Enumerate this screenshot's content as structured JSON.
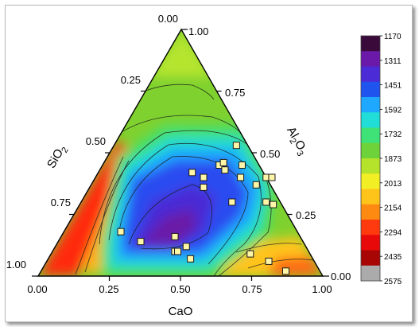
{
  "chart_data": {
    "type": "ternary-contour",
    "axes": {
      "bottom": {
        "label": "CaO",
        "ticks": [
          "0.00",
          "0.25",
          "0.50",
          "0.75",
          "1.00"
        ]
      },
      "left": {
        "label": "SiO",
        "label_sub": "2",
        "ticks": [
          "1.00",
          "0.75",
          "0.50",
          "0.25",
          "0.00"
        ]
      },
      "right": {
        "label_parts": [
          "Al",
          "2",
          "O",
          "3"
        ],
        "ticks": [
          "0.00",
          "0.25",
          "0.50",
          "0.75",
          "1.00"
        ]
      }
    },
    "colorbar": {
      "ticks": [
        "1170",
        "1311",
        "1451",
        "1592",
        "1732",
        "1873",
        "2013",
        "2154",
        "2294",
        "2435",
        "2575"
      ],
      "colors": [
        "#3a0a3a",
        "#6a19a8",
        "#4b2bd6",
        "#1f55ee",
        "#1fa8ff",
        "#21ddd7",
        "#3fe277",
        "#6ed23b",
        "#b5e22b",
        "#f3ef25",
        "#ffc41a",
        "#ff8a12",
        "#ff3a0f",
        "#e80a0a",
        "#a80505",
        "#ababab"
      ]
    },
    "points": [
      {
        "CaO": 0.2,
        "Al2O3": 0.18
      },
      {
        "CaO": 0.29,
        "Al2O3": 0.14
      },
      {
        "CaO": 0.33,
        "Al2O3": 0.42
      },
      {
        "CaO": 0.38,
        "Al2O3": 0.4
      },
      {
        "CaO": 0.4,
        "Al2O3": 0.36
      },
      {
        "CaO": 0.41,
        "Al2O3": 0.45
      },
      {
        "CaO": 0.42,
        "Al2O3": 0.46
      },
      {
        "CaO": 0.43,
        "Al2O3": 0.53
      },
      {
        "CaO": 0.4,
        "Al2O3": 0.16
      },
      {
        "CaO": 0.43,
        "Al2O3": 0.1
      },
      {
        "CaO": 0.44,
        "Al2O3": 0.1
      },
      {
        "CaO": 0.46,
        "Al2O3": 0.12
      },
      {
        "CaO": 0.5,
        "Al2O3": 0.07
      },
      {
        "CaO": 0.51,
        "Al2O3": 0.4
      },
      {
        "CaO": 0.53,
        "Al2O3": 0.3
      },
      {
        "CaO": 0.44,
        "Al2O3": 0.43
      },
      {
        "CaO": 0.49,
        "Al2O3": 0.45
      },
      {
        "CaO": 0.58,
        "Al2O3": 0.37
      },
      {
        "CaO": 0.6,
        "Al2O3": 0.4
      },
      {
        "CaO": 0.62,
        "Al2O3": 0.4
      },
      {
        "CaO": 0.65,
        "Al2O3": 0.3
      },
      {
        "CaO": 0.68,
        "Al2O3": 0.29
      },
      {
        "CaO": 0.7,
        "Al2O3": 0.09
      },
      {
        "CaO": 0.78,
        "Al2O3": 0.06
      },
      {
        "CaO": 0.86,
        "Al2O3": 0.02
      }
    ]
  }
}
